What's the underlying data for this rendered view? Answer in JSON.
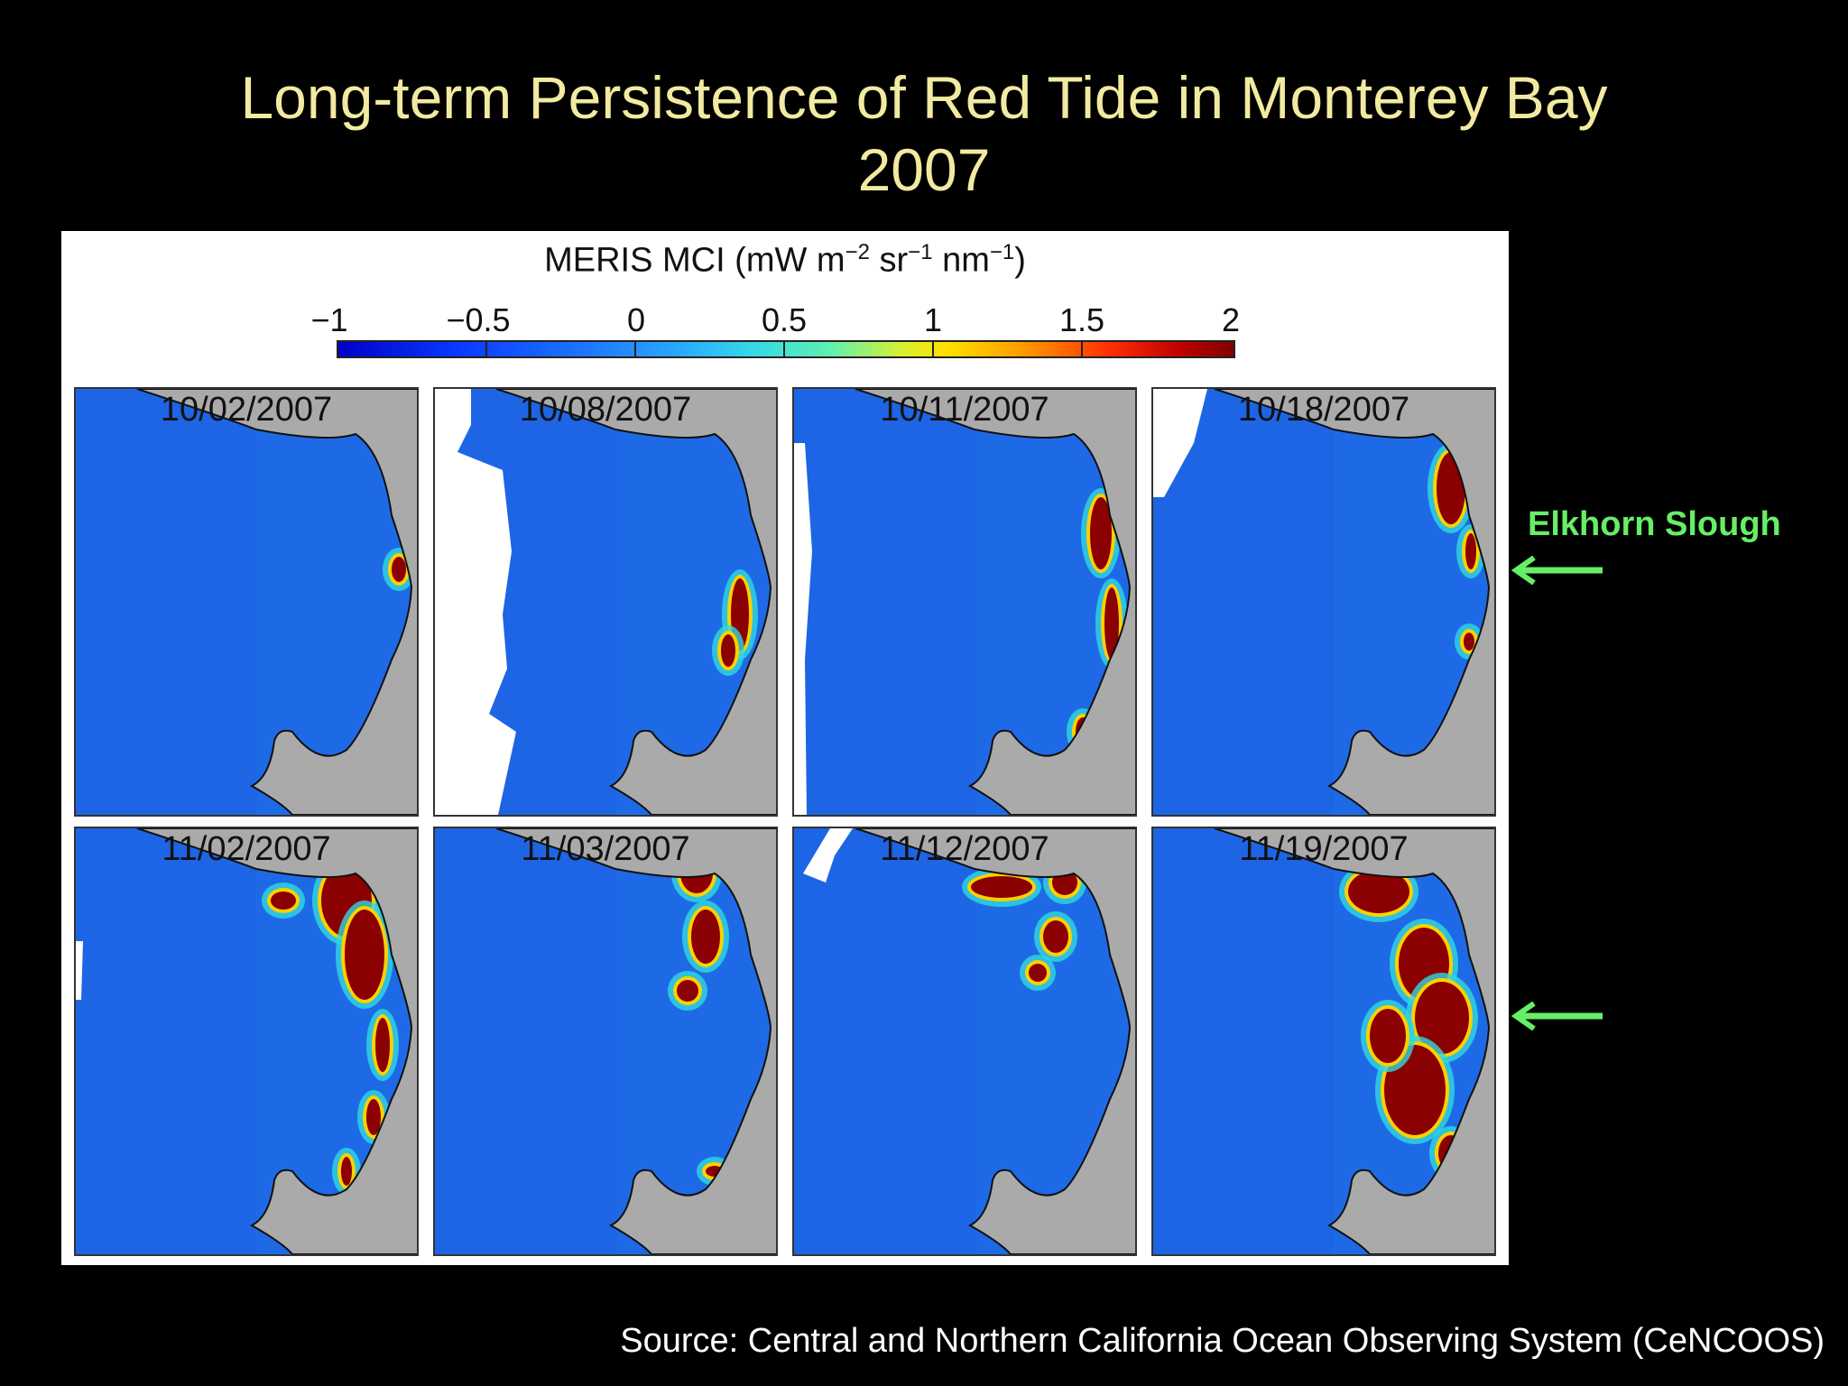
{
  "slide": {
    "title_line1": "Long-term Persistence of Red Tide in Monterey Bay",
    "title_line2": "2007",
    "source": "Source:  Central and Northern California Ocean Observing System (CeNCOOS)"
  },
  "colorbar": {
    "label_text": "MERIS MCI (mW m",
    "label_exp1": "−2",
    "label_mid": " sr",
    "label_exp2": "−1",
    "label_mid2": " nm",
    "label_exp3": "−1",
    "label_end": ")",
    "ticks": [
      "−1",
      "−0.5",
      "0",
      "0.5",
      "1",
      "1.5",
      "2"
    ]
  },
  "panels": [
    {
      "date": "10/02/2007"
    },
    {
      "date": "10/08/2007"
    },
    {
      "date": "10/11/2007"
    },
    {
      "date": "10/18/2007"
    },
    {
      "date": "11/02/2007"
    },
    {
      "date": "11/03/2007"
    },
    {
      "date": "11/12/2007"
    },
    {
      "date": "11/19/2007"
    }
  ],
  "annotation": {
    "label": "Elkhorn Slough",
    "color": "#66ee66"
  },
  "colors": {
    "background": "#000000",
    "title": "#f2eaa0",
    "ocean": "#1e6ae6",
    "land": "#aaaaaa",
    "bloom_high": "#8b0000"
  }
}
